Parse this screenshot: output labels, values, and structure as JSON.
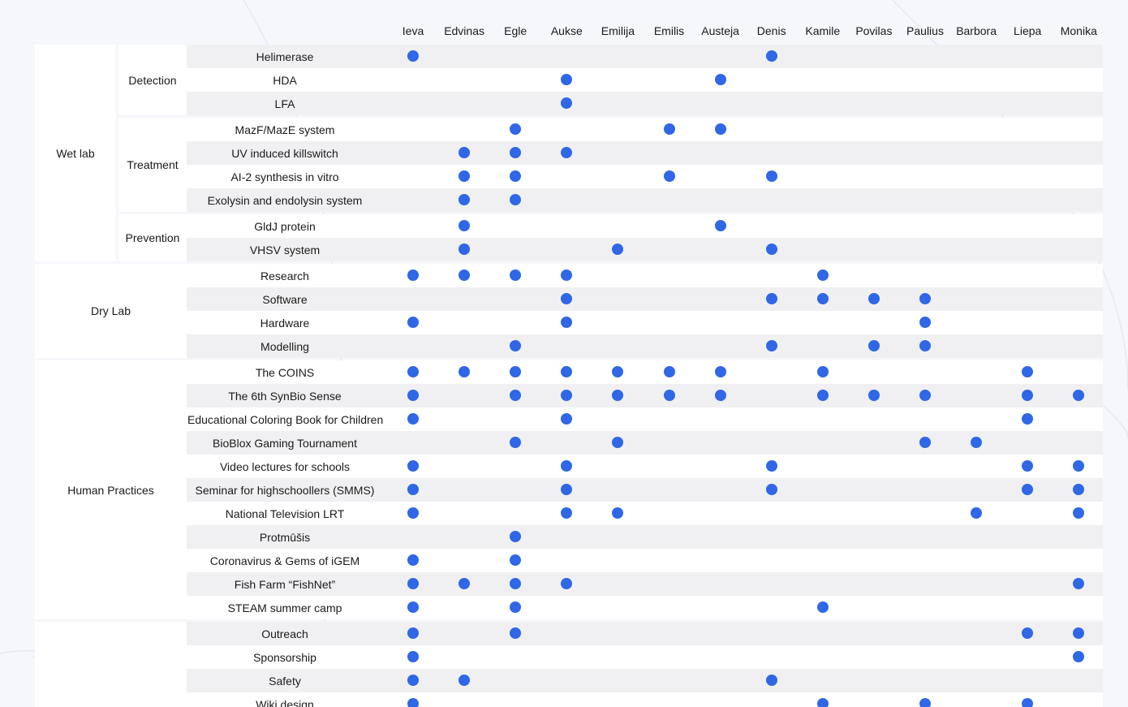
{
  "columns": [
    "Ieva",
    "Edvinas",
    "Egle",
    "Aukse",
    "Emilija",
    "Emilis",
    "Austeja",
    "Denis",
    "Kamile",
    "Povilas",
    "Paulius",
    "Barbora",
    "Liepa",
    "Monika"
  ],
  "groups": [
    {
      "name": "Wet lab",
      "subgroups": [
        {
          "name": "Detection",
          "rows": [
            {
              "label": "Helimerase",
              "members": [
                "Ieva",
                "Denis"
              ]
            },
            {
              "label": "HDA",
              "members": [
                "Aukse",
                "Austeja"
              ]
            },
            {
              "label": "LFA",
              "members": [
                "Aukse"
              ]
            }
          ]
        },
        {
          "name": "Treatment",
          "rows": [
            {
              "label": "MazF/MazE system",
              "members": [
                "Egle",
                "Emilis",
                "Austeja"
              ]
            },
            {
              "label": "UV induced killswitch",
              "members": [
                "Edvinas",
                "Egle",
                "Aukse"
              ]
            },
            {
              "label": "AI-2 synthesis in vitro",
              "members": [
                "Edvinas",
                "Egle",
                "Emilis",
                "Denis"
              ]
            },
            {
              "label": "Exolysin and endolysin system",
              "members": [
                "Edvinas",
                "Egle"
              ]
            }
          ]
        },
        {
          "name": "Prevention",
          "rows": [
            {
              "label": "GldJ protein",
              "members": [
                "Edvinas",
                "Austeja"
              ]
            },
            {
              "label": "VHSV system",
              "members": [
                "Edvinas",
                "Emilija",
                "Denis"
              ]
            }
          ]
        }
      ]
    },
    {
      "name": "Dry Lab",
      "subgroups": [
        {
          "name": "",
          "rows": [
            {
              "label": "Research",
              "members": [
                "Ieva",
                "Edvinas",
                "Egle",
                "Aukse",
                "Kamile"
              ]
            },
            {
              "label": "Software",
              "members": [
                "Aukse",
                "Denis",
                "Kamile",
                "Povilas",
                "Paulius"
              ]
            },
            {
              "label": "Hardware",
              "members": [
                "Ieva",
                "Aukse",
                "Paulius"
              ]
            },
            {
              "label": "Modelling",
              "members": [
                "Egle",
                "Denis",
                "Povilas",
                "Paulius"
              ]
            }
          ]
        }
      ]
    },
    {
      "name": "Human Practices",
      "subgroups": [
        {
          "name": "",
          "rows": [
            {
              "label": "The COINS",
              "members": [
                "Ieva",
                "Edvinas",
                "Egle",
                "Aukse",
                "Emilija",
                "Emilis",
                "Austeja",
                "Kamile",
                "Liepa"
              ]
            },
            {
              "label": "The 6th SynBio Sense",
              "members": [
                "Ieva",
                "Egle",
                "Aukse",
                "Emilija",
                "Emilis",
                "Austeja",
                "Kamile",
                "Povilas",
                "Paulius",
                "Liepa",
                "Monika"
              ]
            },
            {
              "label": "Educational Coloring Book for Children",
              "members": [
                "Ieva",
                "Aukse",
                "Liepa"
              ]
            },
            {
              "label": "BioBlox Gaming Tournament",
              "members": [
                "Egle",
                "Emilija",
                "Paulius",
                "Barbora"
              ]
            },
            {
              "label": "Video lectures for schools",
              "members": [
                "Ieva",
                "Aukse",
                "Denis",
                "Liepa",
                "Monika"
              ]
            },
            {
              "label": "Seminar for highschoollers (SMMS)",
              "members": [
                "Ieva",
                "Aukse",
                "Denis",
                "Liepa",
                "Monika"
              ]
            },
            {
              "label": "National Television LRT",
              "members": [
                "Ieva",
                "Aukse",
                "Emilija",
                "Barbora",
                "Monika"
              ]
            },
            {
              "label": "Protmūšis",
              "members": [
                "Egle"
              ]
            },
            {
              "label": "Coronavirus & Gems of iGEM",
              "members": [
                "Ieva",
                "Egle"
              ]
            },
            {
              "label": "Fish Farm “FishNet”",
              "members": [
                "Ieva",
                "Edvinas",
                "Egle",
                "Aukse",
                "Monika"
              ]
            },
            {
              "label": "STEAM summer camp",
              "members": [
                "Ieva",
                "Egle",
                "Kamile"
              ]
            }
          ]
        }
      ]
    },
    {
      "name": "",
      "subgroups": [
        {
          "name": "",
          "rows": [
            {
              "label": "Outreach",
              "members": [
                "Ieva",
                "Egle",
                "Liepa",
                "Monika"
              ]
            },
            {
              "label": "Sponsorship",
              "members": [
                "Ieva",
                "Monika"
              ]
            },
            {
              "label": "Safety",
              "members": [
                "Ieva",
                "Edvinas",
                "Denis"
              ]
            },
            {
              "label": "Wiki design",
              "members": [
                "Ieva",
                "Kamile",
                "Paulius",
                "Liepa"
              ]
            }
          ]
        }
      ]
    }
  ],
  "colors": {
    "dot": "#2f67e6",
    "band_odd": "#f0f0f2",
    "band_even": "#ffffff",
    "page": "#f6f7fb"
  }
}
